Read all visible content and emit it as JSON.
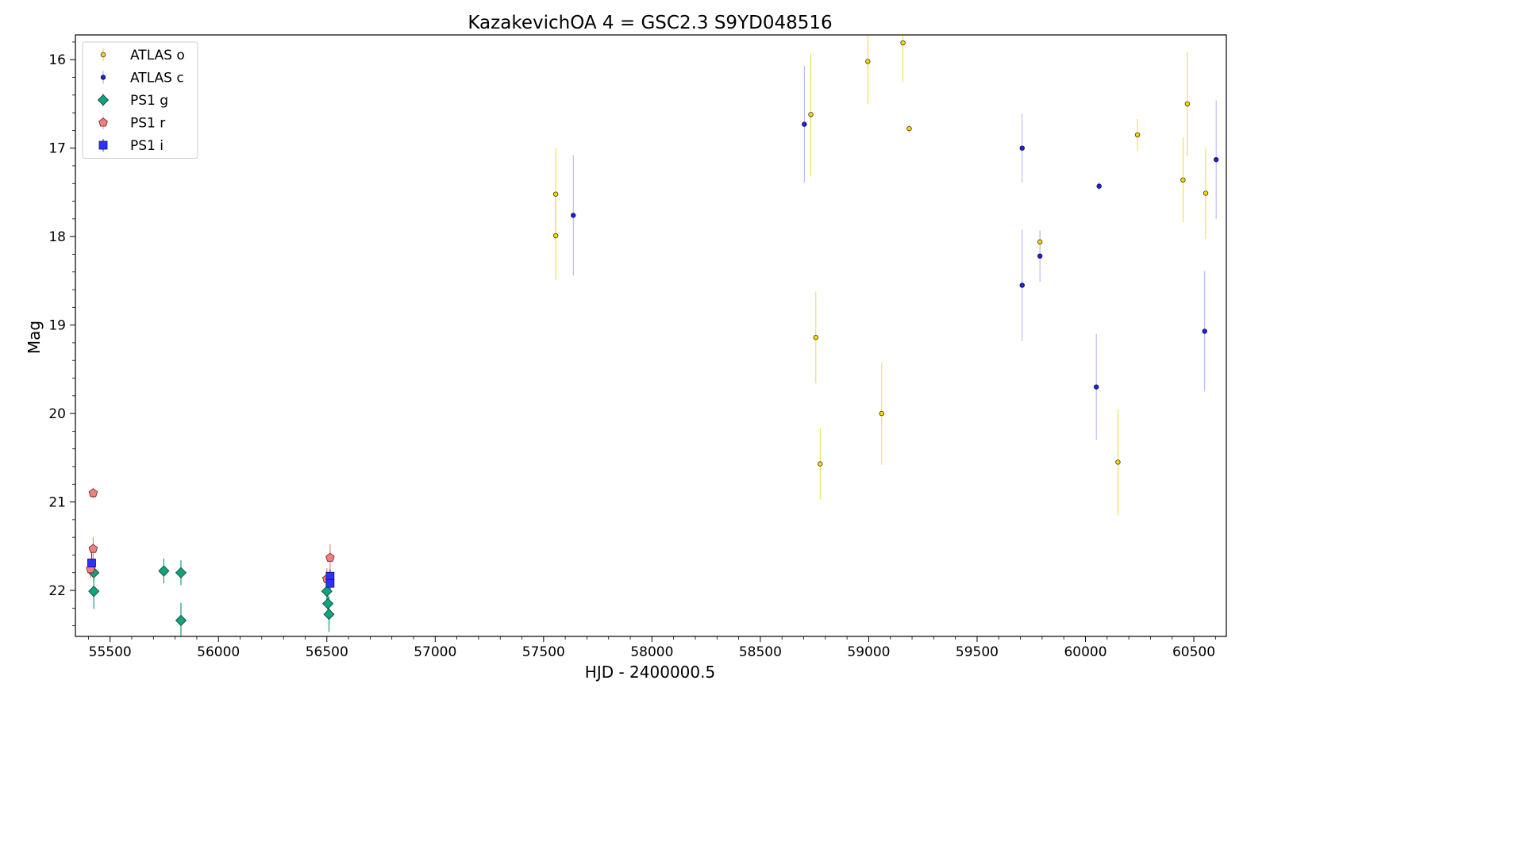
{
  "chart_data": {
    "type": "scatter",
    "title": "KazakevichOA 4 = GSC2.3 S9YD048516",
    "xlabel": "HJD - 2400000.5",
    "ylabel": "Mag",
    "xlim": [
      55340,
      60650
    ],
    "ylim": [
      22.52,
      15.72
    ],
    "y_inverted": true,
    "grid": false,
    "legend_placement": "upper-left",
    "xticks": [
      55500,
      56000,
      56500,
      57000,
      57500,
      58000,
      58500,
      59000,
      59500,
      60000,
      60500
    ],
    "yticks": [
      16,
      17,
      18,
      19,
      20,
      21,
      22
    ],
    "series": [
      {
        "name": "ATLAS o",
        "marker": "small-circle",
        "color": "#FFD700",
        "edge": "#333333",
        "errcolor": "#E8D000",
        "points": [
          {
            "x": 57556,
            "y": 17.52,
            "err": 0.52
          },
          {
            "x": 57556,
            "y": 17.99,
            "err": 0.5
          },
          {
            "x": 58733,
            "y": 16.62,
            "err": 0.69
          },
          {
            "x": 58756,
            "y": 19.14,
            "err": 0.52
          },
          {
            "x": 58776,
            "y": 20.57,
            "err": 0.4
          },
          {
            "x": 58996,
            "y": 16.02,
            "err": 0.48
          },
          {
            "x": 59060,
            "y": 20.0,
            "err": 0.58
          },
          {
            "x": 59158,
            "y": 15.81,
            "err": 0.45
          },
          {
            "x": 59187,
            "y": 16.78,
            "err": 0.05
          },
          {
            "x": 59790,
            "y": 18.06,
            "err": 0.12
          },
          {
            "x": 60150,
            "y": 20.55,
            "err": 0.6
          },
          {
            "x": 60240,
            "y": 16.85,
            "err": 0.18
          },
          {
            "x": 60450,
            "y": 17.36,
            "err": 0.48
          },
          {
            "x": 60470,
            "y": 16.5,
            "err": 0.59
          },
          {
            "x": 60555,
            "y": 17.51,
            "err": 0.52
          }
        ]
      },
      {
        "name": "ATLAS c",
        "marker": "small-circle",
        "color": "#2020DD",
        "edge": "#111144",
        "errcolor": "#9999EE",
        "points": [
          {
            "x": 57637,
            "y": 17.76,
            "err": 0.68
          },
          {
            "x": 58703,
            "y": 16.73,
            "err": 0.66
          },
          {
            "x": 59708,
            "y": 17.0,
            "err": 0.39
          },
          {
            "x": 59708,
            "y": 18.55,
            "err": 0.63
          },
          {
            "x": 59790,
            "y": 18.22,
            "err": 0.29
          },
          {
            "x": 60050,
            "y": 19.7,
            "err": 0.6
          },
          {
            "x": 60063,
            "y": 17.43,
            "err": 0.05
          },
          {
            "x": 60550,
            "y": 19.07,
            "err": 0.68
          },
          {
            "x": 60603,
            "y": 17.13,
            "err": 0.67
          }
        ]
      },
      {
        "name": "PS1 g",
        "marker": "diamond",
        "color": "#10A37F",
        "edge": "#0B3D2E",
        "errcolor": "#10A37F",
        "points": [
          {
            "x": 55425,
            "y": 21.8,
            "err": 0.1
          },
          {
            "x": 55425,
            "y": 22.01,
            "err": 0.2
          },
          {
            "x": 55748,
            "y": 21.78,
            "err": 0.14
          },
          {
            "x": 55827,
            "y": 21.8,
            "err": 0.14
          },
          {
            "x": 55827,
            "y": 22.34,
            "err": 0.2
          },
          {
            "x": 56500,
            "y": 22.01,
            "err": 0.1
          },
          {
            "x": 56505,
            "y": 22.15,
            "err": 0.09
          },
          {
            "x": 56510,
            "y": 22.27,
            "err": 0.2
          }
        ]
      },
      {
        "name": "PS1 r",
        "marker": "pentagon",
        "color": "#F08080",
        "edge": "#662222",
        "errcolor": "#F08080",
        "points": [
          {
            "x": 55410,
            "y": 21.76,
            "err": 0.1
          },
          {
            "x": 55422,
            "y": 20.9,
            "err": 0.06
          },
          {
            "x": 55422,
            "y": 21.53,
            "err": 0.13
          },
          {
            "x": 56500,
            "y": 21.87,
            "err": 0.12
          },
          {
            "x": 56515,
            "y": 21.63,
            "err": 0.15
          }
        ]
      },
      {
        "name": "PS1 i",
        "marker": "square",
        "color": "#3030FF",
        "edge": "#101050",
        "errcolor": "#3030FF",
        "points": [
          {
            "x": 55415,
            "y": 21.69,
            "err": 0.12
          },
          {
            "x": 56515,
            "y": 21.84,
            "err": 0.08
          },
          {
            "x": 56515,
            "y": 21.92,
            "err": 0.1
          }
        ]
      }
    ]
  }
}
